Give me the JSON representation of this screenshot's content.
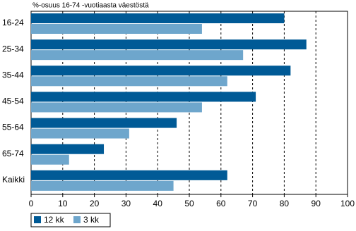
{
  "chart_data": {
    "type": "barh",
    "title": "%-osuus 16-74 -vuotiaasta väestöstä",
    "categories": [
      "16-24",
      "25-34",
      "35-44",
      "45-54",
      "55-64",
      "65-74",
      "Kaikki"
    ],
    "series": [
      {
        "name": "12 kk",
        "color": "#005a96",
        "values": [
          80,
          87,
          82,
          71,
          46,
          23,
          62
        ]
      },
      {
        "name": "3 kk",
        "color": "#6ea6cc",
        "values": [
          54,
          67,
          62,
          54,
          31,
          12,
          45
        ]
      }
    ],
    "xlim": [
      0,
      100
    ],
    "xticks": [
      0,
      10,
      20,
      30,
      40,
      50,
      60,
      70,
      80,
      90,
      100
    ],
    "grid": true,
    "legend": "bottom-left"
  }
}
